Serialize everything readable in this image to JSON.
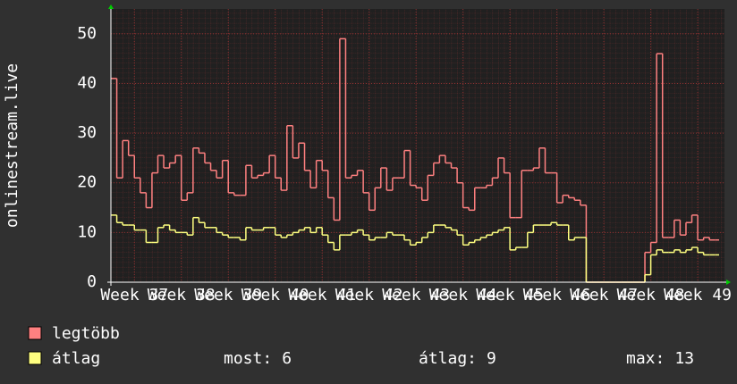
{
  "chart_data": {
    "type": "step",
    "ylabel": "onlinestream.live",
    "x": [
      36.5,
      36.625,
      36.75,
      36.875,
      37,
      37.125,
      37.25,
      37.375,
      37.5,
      37.625,
      37.75,
      37.875,
      38,
      38.125,
      38.25,
      38.375,
      38.5,
      38.625,
      38.75,
      38.875,
      39,
      39.125,
      39.25,
      39.375,
      39.5,
      39.625,
      39.75,
      39.875,
      40,
      40.125,
      40.25,
      40.375,
      40.5,
      40.625,
      40.75,
      40.875,
      41,
      41.125,
      41.25,
      41.375,
      41.5,
      41.625,
      41.75,
      41.875,
      42,
      42.125,
      42.25,
      42.375,
      42.5,
      42.625,
      42.75,
      42.875,
      43,
      43.125,
      43.25,
      43.375,
      43.5,
      43.625,
      43.75,
      43.875,
      44,
      44.125,
      44.25,
      44.375,
      44.5,
      44.625,
      44.75,
      44.875,
      45,
      45.125,
      45.25,
      45.375,
      45.5,
      45.625,
      45.75,
      45.875,
      46,
      46.125,
      46.25,
      46.375,
      46.5,
      46.625,
      46.75,
      46.875,
      47,
      47.125,
      47.25,
      47.375,
      47.5,
      47.625,
      47.75,
      47.875,
      48,
      48.125,
      48.25,
      48.375,
      48.5,
      48.625,
      48.75,
      48.875,
      49,
      49.125,
      49.25,
      49.375
    ],
    "series": [
      {
        "name": "legtöbb",
        "color": "#ff8080",
        "values": [
          41,
          21,
          28.5,
          25.5,
          21,
          18,
          15,
          22,
          25.5,
          23,
          24,
          25.5,
          16.5,
          18,
          27,
          26,
          24,
          22.5,
          21,
          24.5,
          18,
          17.5,
          17.5,
          23.5,
          21,
          21.5,
          22,
          25.5,
          21,
          18.5,
          31.5,
          25,
          28,
          22.5,
          19,
          24.5,
          22.5,
          17,
          12.5,
          49,
          21,
          21.5,
          22.5,
          18,
          14.5,
          19,
          23,
          18.5,
          21,
          21,
          26.5,
          19.5,
          19,
          16.5,
          21.5,
          24,
          25.5,
          24,
          23,
          20,
          15,
          14.5,
          19,
          19,
          19.5,
          21,
          25,
          22,
          13,
          13,
          22.5,
          22.5,
          23,
          27,
          22,
          22,
          16,
          17.5,
          17,
          16.5,
          15.5,
          0,
          0,
          0,
          0,
          0,
          0,
          0,
          0,
          0,
          0,
          6,
          8,
          46,
          9,
          9,
          12.5,
          9.5,
          12,
          13.5,
          8.5,
          9,
          8.5,
          8.5
        ]
      },
      {
        "name": "átlag",
        "color": "#ffff80",
        "values": [
          13.5,
          12,
          11.5,
          11.5,
          10.5,
          10.5,
          8,
          8,
          11,
          11.5,
          10.5,
          10,
          10,
          9.5,
          13,
          12,
          11,
          11,
          10,
          9.5,
          9,
          9,
          8.5,
          11,
          10.5,
          10.5,
          11,
          11,
          9.5,
          9,
          9.5,
          10,
          10.5,
          11,
          10,
          11,
          9.5,
          8,
          6.5,
          9.5,
          9.5,
          10,
          10.5,
          9.5,
          8.5,
          9,
          9,
          10,
          9.5,
          9.5,
          8.5,
          7.5,
          8,
          9,
          10,
          11.5,
          11.5,
          11,
          10.5,
          9.5,
          7.5,
          8,
          8.5,
          9,
          9.5,
          10,
          10.5,
          11,
          6.5,
          7,
          7,
          10,
          11.5,
          11.5,
          11.5,
          12,
          11.5,
          11.5,
          8.5,
          9,
          9,
          0,
          0,
          0,
          0,
          0,
          0,
          0,
          0,
          0,
          0,
          1.5,
          5.5,
          6.5,
          6,
          6,
          6.5,
          6,
          6.5,
          7,
          6,
          5.5,
          5.5,
          5.5
        ]
      }
    ],
    "xlim": [
      36.5,
      49.57
    ],
    "xticks": [
      {
        "value": 37,
        "label": "Week 37"
      },
      {
        "value": 38,
        "label": "Week 38"
      },
      {
        "value": 39,
        "label": "Week 39"
      },
      {
        "value": 40,
        "label": "Week 40"
      },
      {
        "value": 41,
        "label": "Week 41"
      },
      {
        "value": 42,
        "label": "Week 42"
      },
      {
        "value": 43,
        "label": "Week 43"
      },
      {
        "value": 44,
        "label": "Week 44"
      },
      {
        "value": 45,
        "label": "Week 45"
      },
      {
        "value": 46,
        "label": "Week 46"
      },
      {
        "value": 47,
        "label": "Week 47"
      },
      {
        "value": 48,
        "label": "Week 48"
      },
      {
        "value": 49,
        "label": "Week 49"
      }
    ],
    "ylim": [
      0,
      55
    ],
    "yticks": [
      0,
      10,
      20,
      30,
      40,
      50
    ],
    "grid": true,
    "stats": [
      {
        "label": "most:",
        "value": 6
      },
      {
        "label": "átlag:",
        "value": 9
      },
      {
        "label": "max:",
        "value": 13
      }
    ]
  }
}
